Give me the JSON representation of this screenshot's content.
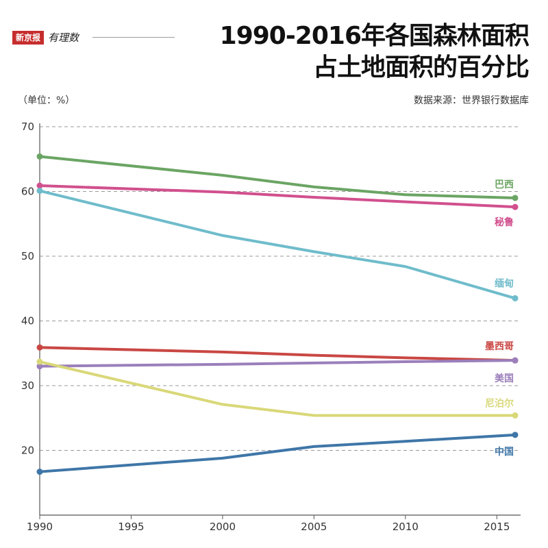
{
  "logo": {
    "brand": "新京报",
    "sub": "有理数"
  },
  "header": {
    "title_line1": "1990-2016年各国森林面积",
    "title_line2": "占土地面积的百分比",
    "unit": "（单位：%）",
    "source": "数据来源：世界银行数据库"
  },
  "chart_data": {
    "type": "line",
    "title": "1990-2016年各国森林面积占土地面积的百分比",
    "xlim": [
      1990,
      2016
    ],
    "ylim": [
      10,
      70
    ],
    "x_ticks": [
      1990,
      1995,
      2000,
      2005,
      2010,
      2015
    ],
    "y_ticks": [
      20,
      30,
      40,
      50,
      60,
      70
    ],
    "grid": "horizontal-dashed",
    "series": [
      {
        "name": "巴西",
        "color": "#6ba564",
        "x": [
          1990,
          2000,
          2005,
          2010,
          2016
        ],
        "values": [
          65.4,
          62.5,
          60.7,
          59.5,
          59.0
        ]
      },
      {
        "name": "秘鲁",
        "color": "#d1508e",
        "x": [
          1990,
          2000,
          2005,
          2010,
          2016
        ],
        "values": [
          60.9,
          59.9,
          59.1,
          58.4,
          57.6
        ]
      },
      {
        "name": "缅甸",
        "color": "#6fbccb",
        "x": [
          1990,
          2000,
          2005,
          2010,
          2016
        ],
        "values": [
          60.1,
          53.2,
          50.7,
          48.4,
          43.5
        ]
      },
      {
        "name": "墨西哥",
        "color": "#c94743",
        "x": [
          1990,
          2000,
          2005,
          2010,
          2016
        ],
        "values": [
          35.9,
          35.2,
          34.7,
          34.3,
          33.9
        ]
      },
      {
        "name": "美国",
        "color": "#9b7fbb",
        "x": [
          1990,
          2000,
          2005,
          2010,
          2016
        ],
        "values": [
          33.0,
          33.3,
          33.5,
          33.7,
          33.9
        ]
      },
      {
        "name": "尼泊尔",
        "color": "#d9d879",
        "x": [
          1990,
          2000,
          2005,
          2010,
          2016
        ],
        "values": [
          33.7,
          27.1,
          25.4,
          25.4,
          25.4
        ]
      },
      {
        "name": "中国",
        "color": "#3f76a8",
        "x": [
          1990,
          2000,
          2005,
          2010,
          2016
        ],
        "values": [
          16.7,
          18.8,
          20.6,
          21.4,
          22.4
        ]
      }
    ]
  }
}
